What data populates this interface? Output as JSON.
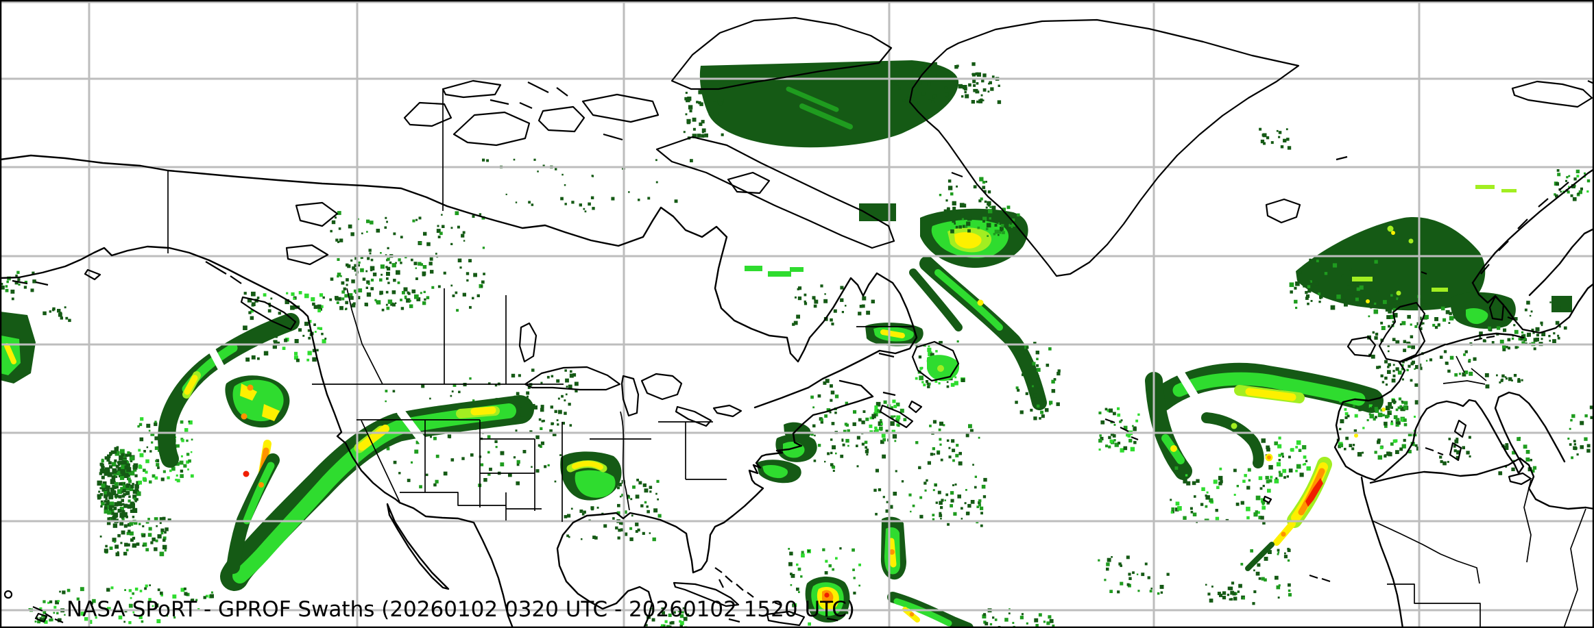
{
  "title": {
    "text": "NASA SPoRT - GPROF Swaths (20260102 0320 UTC - 20260102 1520 UTC)",
    "product": "GPROF Swaths",
    "source": "NASA SPoRT",
    "start_time": "20260102 0320 UTC",
    "end_time": "20260102 1520 UTC"
  },
  "colors": {
    "background": "#ffffff",
    "grid_line": "#bdbdbd",
    "coastline": "#000000",
    "political_border": "#000000",
    "frame": "#000000",
    "title_text": "#000000",
    "rain_dark_green": "#155a15",
    "rain_medium_green": "#1f9c1f",
    "rain_bright_green": "#2fdc2f",
    "rain_chartreuse": "#a2ee21",
    "rain_yellow": "#fdf000",
    "rain_orange": "#ff9300",
    "rain_red": "#f01e00"
  }
}
